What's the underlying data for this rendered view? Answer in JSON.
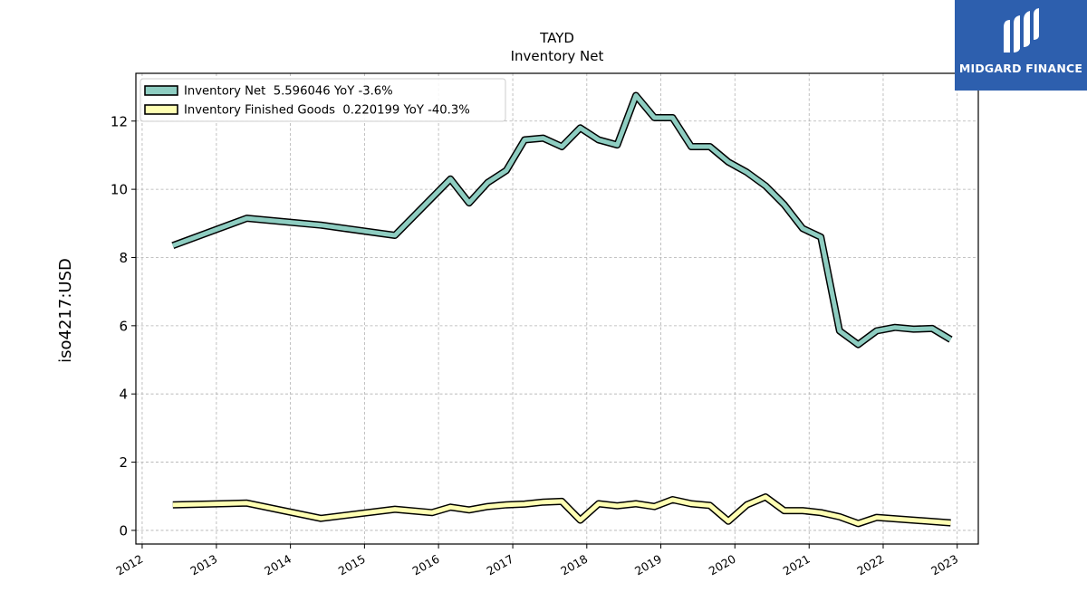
{
  "brand": {
    "name": "MIDGARD FINANCE"
  },
  "chart_data": {
    "type": "line",
    "title": "TAYD",
    "subtitle": "Inventory Net",
    "ylabel": "iso4217:USD",
    "xlabel": "",
    "ylim": [
      -0.4,
      13.4
    ],
    "yticks": [
      0,
      2,
      4,
      6,
      8,
      10,
      12
    ],
    "xlim": [
      "2011-12-01",
      "2023-04-15"
    ],
    "xticks": [
      "2012",
      "2013",
      "2014",
      "2015",
      "2016",
      "2017",
      "2018",
      "2019",
      "2020",
      "2021",
      "2022",
      "2023"
    ],
    "grid": true,
    "legend_position": "top-left",
    "series": [
      {
        "name": "Inventory Net  5.596046 YoY -3.6%",
        "color": "#8ecdc1",
        "points": [
          [
            "2012-05-31",
            8.35
          ],
          [
            "2013-05-31",
            9.15
          ],
          [
            "2014-05-31",
            8.95
          ],
          [
            "2015-05-31",
            8.65
          ],
          [
            "2016-02-29",
            10.3
          ],
          [
            "2016-05-31",
            9.6
          ],
          [
            "2016-08-31",
            10.2
          ],
          [
            "2016-11-30",
            10.55
          ],
          [
            "2017-02-28",
            11.45
          ],
          [
            "2017-05-31",
            11.5
          ],
          [
            "2017-08-31",
            11.25
          ],
          [
            "2017-11-30",
            11.8
          ],
          [
            "2018-02-28",
            11.45
          ],
          [
            "2018-05-31",
            11.3
          ],
          [
            "2018-08-31",
            12.75
          ],
          [
            "2018-11-30",
            12.1
          ],
          [
            "2019-02-28",
            12.1
          ],
          [
            "2019-05-31",
            11.25
          ],
          [
            "2019-08-31",
            11.25
          ],
          [
            "2019-11-30",
            10.8
          ],
          [
            "2020-02-29",
            10.5
          ],
          [
            "2020-05-31",
            10.1
          ],
          [
            "2020-08-31",
            9.55
          ],
          [
            "2020-11-30",
            8.85
          ],
          [
            "2021-02-28",
            8.6
          ],
          [
            "2021-05-31",
            5.85
          ],
          [
            "2021-08-31",
            5.45
          ],
          [
            "2021-11-30",
            5.85
          ],
          [
            "2022-02-28",
            5.95
          ],
          [
            "2022-05-31",
            5.9
          ],
          [
            "2022-08-31",
            5.92
          ],
          [
            "2022-11-30",
            5.596
          ]
        ]
      },
      {
        "name": "Inventory Finished Goods  0.220199 YoY -40.3%",
        "color": "#ffffb3",
        "points": [
          [
            "2012-05-31",
            0.75
          ],
          [
            "2013-05-31",
            0.8
          ],
          [
            "2014-05-31",
            0.35
          ],
          [
            "2015-05-31",
            0.62
          ],
          [
            "2015-11-30",
            0.52
          ],
          [
            "2016-02-29",
            0.68
          ],
          [
            "2016-05-31",
            0.6
          ],
          [
            "2016-08-31",
            0.7
          ],
          [
            "2016-11-30",
            0.75
          ],
          [
            "2017-02-28",
            0.77
          ],
          [
            "2017-05-31",
            0.83
          ],
          [
            "2017-08-31",
            0.85
          ],
          [
            "2017-11-30",
            0.3
          ],
          [
            "2018-02-28",
            0.78
          ],
          [
            "2018-05-31",
            0.72
          ],
          [
            "2018-08-31",
            0.78
          ],
          [
            "2018-11-30",
            0.7
          ],
          [
            "2019-02-28",
            0.9
          ],
          [
            "2019-05-31",
            0.78
          ],
          [
            "2019-08-31",
            0.73
          ],
          [
            "2019-11-30",
            0.27
          ],
          [
            "2020-02-29",
            0.75
          ],
          [
            "2020-05-31",
            0.98
          ],
          [
            "2020-08-31",
            0.58
          ],
          [
            "2020-11-30",
            0.58
          ],
          [
            "2021-02-28",
            0.52
          ],
          [
            "2021-05-31",
            0.4
          ],
          [
            "2021-08-31",
            0.2
          ],
          [
            "2021-11-30",
            0.38
          ],
          [
            "2022-11-30",
            0.22
          ]
        ]
      }
    ]
  }
}
